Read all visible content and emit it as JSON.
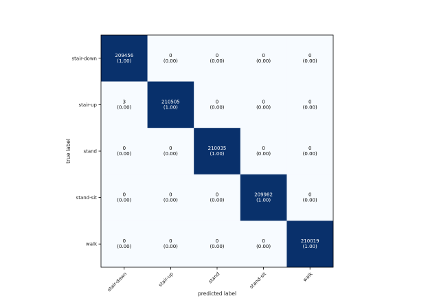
{
  "chart_data": {
    "type": "heatmap",
    "title": "",
    "xlabel": "predicted label",
    "ylabel": "true label",
    "x_categories": [
      "stair-down",
      "stair-up",
      "stand",
      "stand-sit",
      "walk"
    ],
    "y_categories": [
      "stair-down",
      "stair-up",
      "stand",
      "stand-sit",
      "walk"
    ],
    "values": [
      [
        209456,
        0,
        0,
        0,
        0
      ],
      [
        3,
        210505,
        0,
        0,
        0
      ],
      [
        0,
        0,
        210035,
        0,
        0
      ],
      [
        0,
        0,
        0,
        209982,
        0
      ],
      [
        0,
        0,
        0,
        0,
        210019
      ]
    ],
    "normalized": [
      [
        "1.00",
        "0.00",
        "0.00",
        "0.00",
        "0.00"
      ],
      [
        "0.00",
        "1.00",
        "0.00",
        "0.00",
        "0.00"
      ],
      [
        "0.00",
        "0.00",
        "1.00",
        "0.00",
        "0.00"
      ],
      [
        "0.00",
        "0.00",
        "0.00",
        "1.00",
        "0.00"
      ],
      [
        "0.00",
        "0.00",
        "0.00",
        "0.00",
        "1.00"
      ]
    ],
    "colormap": {
      "low": "#f7fbff",
      "high": "#08306b"
    },
    "grid": false,
    "legend": "none"
  }
}
